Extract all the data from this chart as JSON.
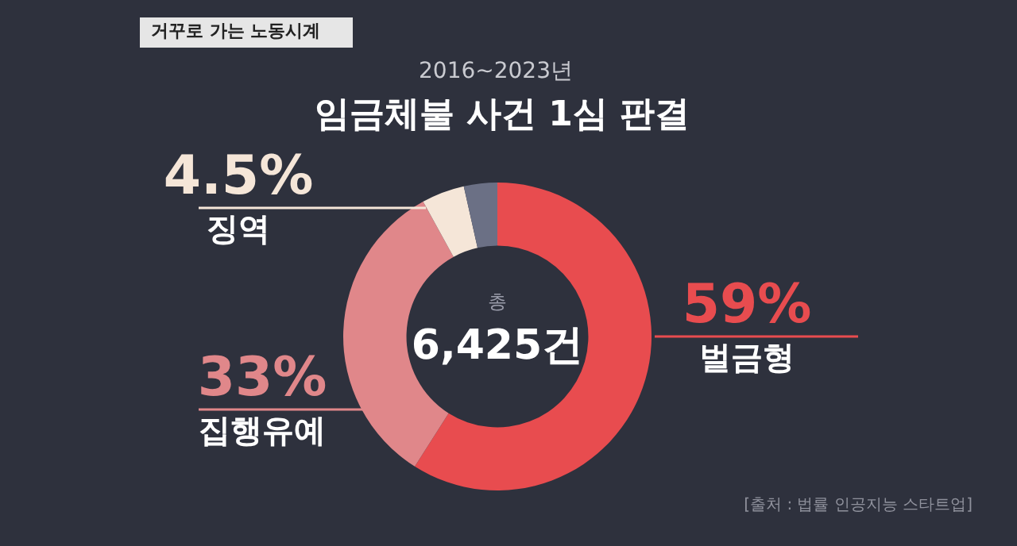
{
  "chart_data": {
    "type": "donut",
    "subtitle": "2016~2023년",
    "title": "임금체불 사건 1심 판결",
    "categories": [
      "벌금형",
      "집행유예",
      "징역",
      null
    ],
    "values": [
      59,
      33,
      4.5,
      3.5
    ],
    "colors": [
      "#e84c4f",
      "#e0878a",
      "#f5e6d8",
      "#6b7085"
    ],
    "value_labels": [
      "59%",
      "33%",
      "4.5%",
      null
    ],
    "annotations": [
      "거꾸로 가는 노동시계",
      "총",
      "6,425건",
      "[출처 : 법률 인공지능 스타트업]"
    ]
  }
}
